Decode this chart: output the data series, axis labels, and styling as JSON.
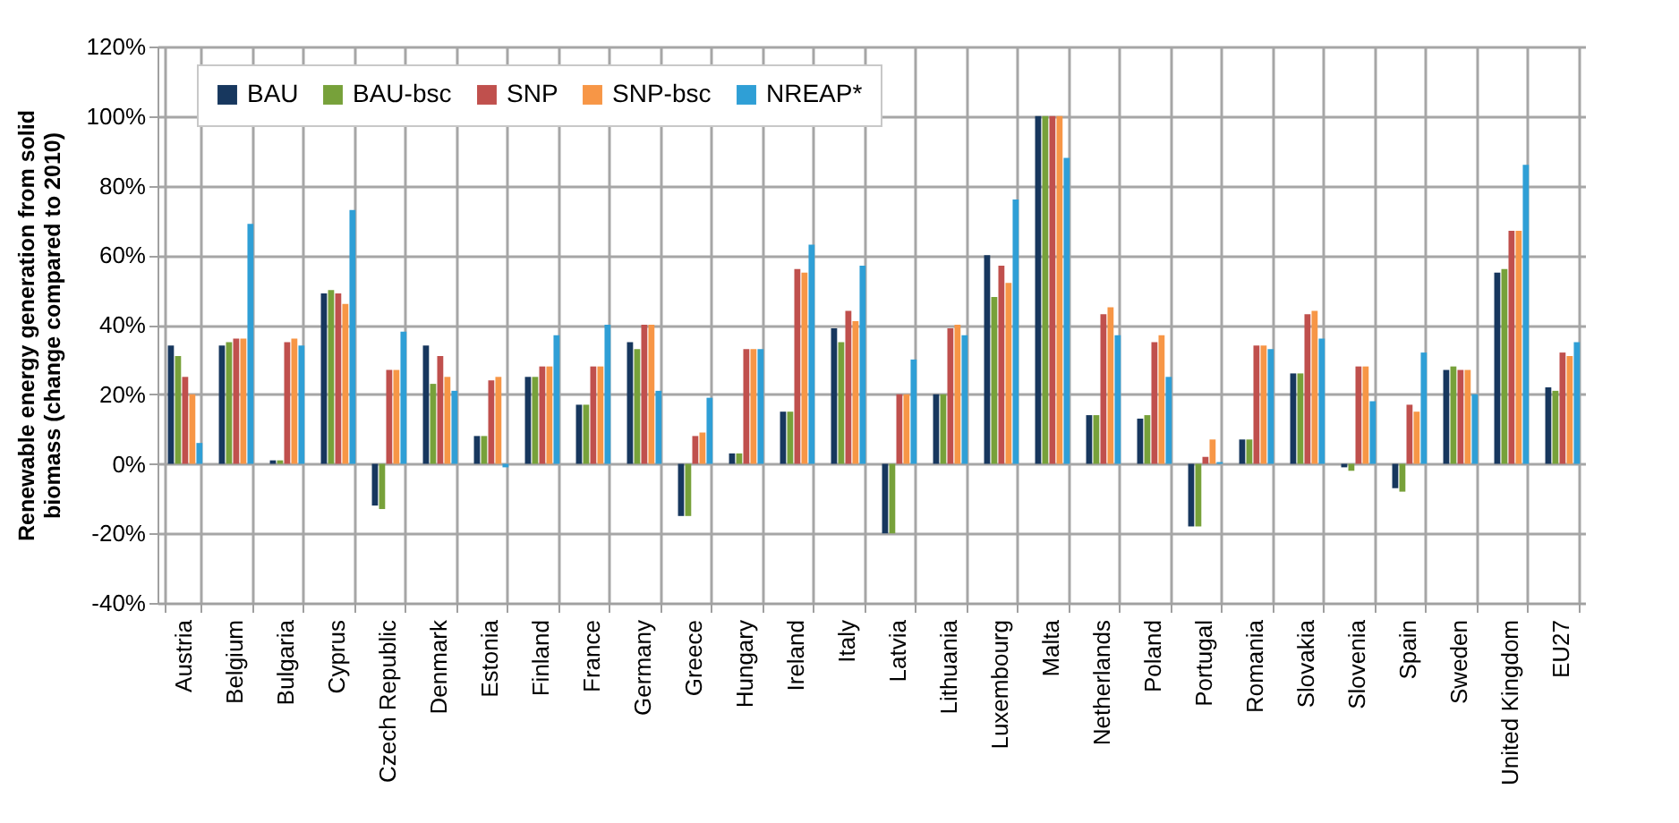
{
  "chart_data": {
    "type": "bar",
    "ylabel": "Renewable energy generation from solid biomass (change  compared to 2010)",
    "categories": [
      "Austria",
      "Belgium",
      "Bulgaria",
      "Cyprus",
      "Czech Republic",
      "Denmark",
      "Estonia",
      "Finland",
      "France",
      "Germany",
      "Greece",
      "Hungary",
      "Ireland",
      "Italy",
      "Latvia",
      "Lithuania",
      "Luxembourg",
      "Malta",
      "Netherlands",
      "Poland",
      "Portugal",
      "Romania",
      "Slovakia",
      "Slovenia",
      "Spain",
      "Sweden",
      "United Kingdom",
      "EU27"
    ],
    "series": [
      {
        "name": "BAU",
        "color": "#17375e",
        "values": [
          34,
          34,
          1,
          49,
          -12,
          34,
          8,
          25,
          17,
          35,
          -15,
          3,
          15,
          39,
          -20,
          20,
          60,
          100,
          14,
          13,
          -18,
          7,
          26,
          -1,
          -7,
          27,
          55,
          22
        ]
      },
      {
        "name": "BAU-bsc",
        "color": "#77a13a",
        "values": [
          31,
          35,
          1,
          50,
          -13,
          23,
          8,
          25,
          17,
          33,
          -15,
          3,
          15,
          35,
          -20,
          20,
          48,
          100,
          14,
          14,
          -18,
          7,
          26,
          -2,
          -8,
          28,
          56,
          21
        ]
      },
      {
        "name": "SNP",
        "color": "#c0504d",
        "values": [
          25,
          36,
          35,
          49,
          27,
          31,
          24,
          28,
          28,
          40,
          8,
          33,
          56,
          44,
          20,
          39,
          57,
          100,
          43,
          35,
          2,
          34,
          43,
          28,
          17,
          27,
          67,
          32
        ]
      },
      {
        "name": "SNP-bsc",
        "color": "#f79646",
        "values": [
          20,
          36,
          36,
          46,
          27,
          25,
          25,
          28,
          28,
          40,
          9,
          33,
          55,
          41,
          20,
          40,
          52,
          100,
          45,
          37,
          7,
          34,
          44,
          28,
          15,
          27,
          67,
          31
        ]
      },
      {
        "name": "NREAP*",
        "color": "#2f9fd6",
        "values": [
          6,
          69,
          34,
          73,
          38,
          21,
          -1,
          37,
          40,
          21,
          19,
          33,
          63,
          57,
          30,
          37,
          76,
          88,
          37,
          25,
          0.5,
          33,
          36,
          18,
          32,
          20,
          86,
          35
        ]
      }
    ],
    "ylim": [
      -40,
      120
    ],
    "yticks": [
      {
        "value": -40,
        "label": "-40%"
      },
      {
        "value": -20,
        "label": "-20%"
      },
      {
        "value": 0,
        "label": "0%"
      },
      {
        "value": 20,
        "label": "20%"
      },
      {
        "value": 40,
        "label": "40%"
      },
      {
        "value": 60,
        "label": "60%"
      },
      {
        "value": 80,
        "label": "80%"
      },
      {
        "value": 100,
        "label": "100%"
      },
      {
        "value": 120,
        "label": "120%"
      }
    ],
    "grid": true,
    "legend": "top left"
  }
}
